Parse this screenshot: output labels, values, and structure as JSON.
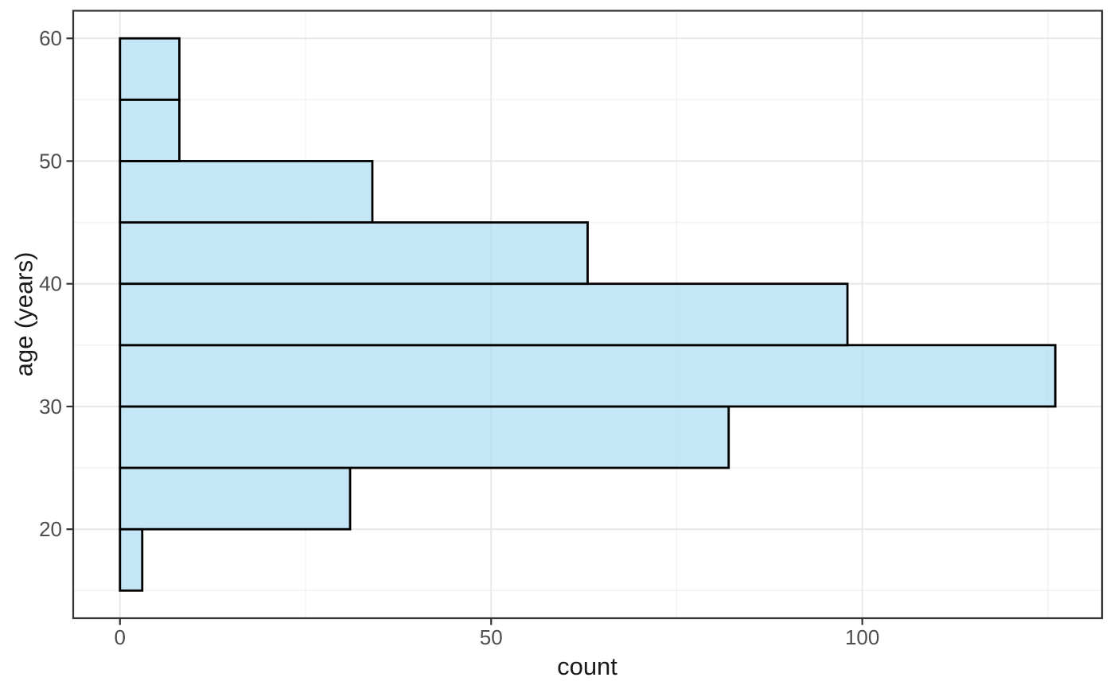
{
  "chart_data": {
    "type": "bar",
    "subtype": "histogram",
    "orientation": "horizontal",
    "title": "",
    "xlabel": "count",
    "ylabel": "age (years)",
    "bin_width": 5,
    "bins": [
      {
        "start": 15,
        "end": 20,
        "count": 3
      },
      {
        "start": 20,
        "end": 25,
        "count": 31
      },
      {
        "start": 25,
        "end": 30,
        "count": 82
      },
      {
        "start": 30,
        "end": 35,
        "count": 126
      },
      {
        "start": 35,
        "end": 40,
        "count": 98
      },
      {
        "start": 40,
        "end": 45,
        "count": 63
      },
      {
        "start": 45,
        "end": 50,
        "count": 34
      },
      {
        "start": 50,
        "end": 55,
        "count": 8
      },
      {
        "start": 55,
        "end": 60,
        "count": 8
      }
    ],
    "x_major_ticks": [
      0,
      50,
      100
    ],
    "x_minor_gridlines": [
      25,
      75,
      125
    ],
    "y_major_ticks": [
      20,
      30,
      40,
      50,
      60
    ],
    "y_minor_gridlines": [
      15,
      25,
      35,
      45,
      55
    ],
    "xlim": [
      -6.3,
      132.3
    ],
    "ylim": [
      12.75,
      62.25
    ],
    "grid": "on",
    "legend": "none",
    "colors": {
      "bar_fill": "#aedcf0",
      "bar_fill_opacity": 0.72,
      "bar_stroke": "#000000",
      "panel_border": "#333333",
      "axis_tick": "#333333",
      "grid_major": "#e7e7e7",
      "grid_minor": "#f3f3f3",
      "tick_label": "#4d4d4d",
      "axis_title": "#1a1a1a",
      "background": "#ffffff"
    }
  }
}
